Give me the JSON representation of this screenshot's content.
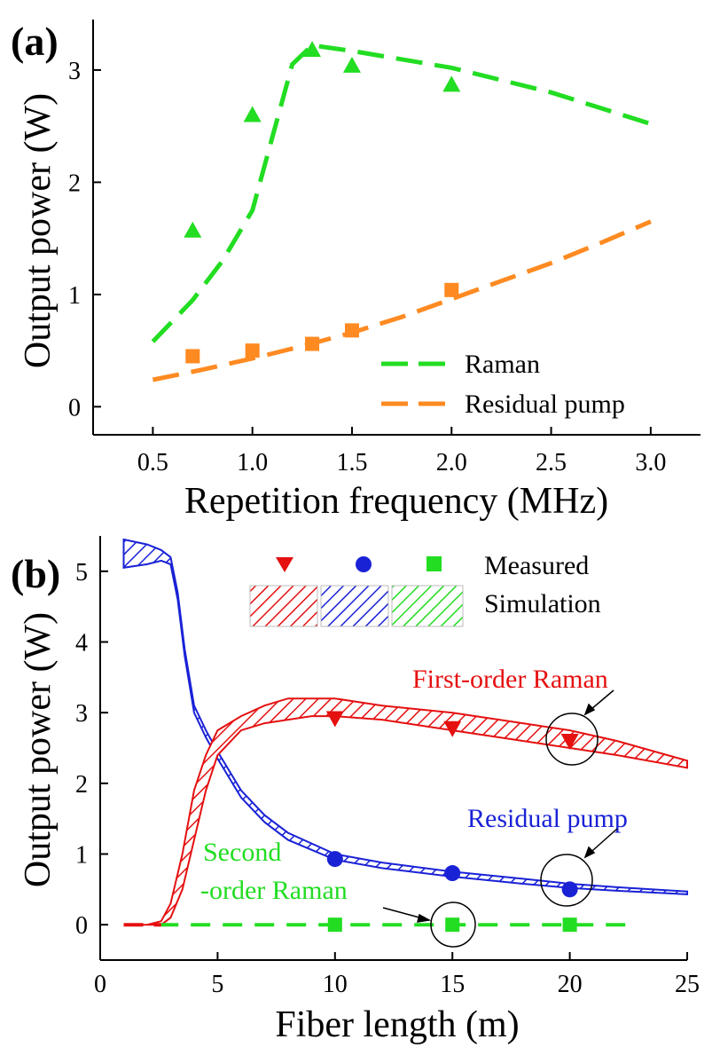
{
  "chart_data": [
    {
      "type": "line",
      "panel_label": "(a)",
      "xlabel": "Repetition frequency (MHz)",
      "ylabel": "Output power (W)",
      "xlim": [
        0.2,
        3.25
      ],
      "ylim": [
        -0.25,
        3.45
      ],
      "xticks": [
        0.5,
        1.0,
        1.5,
        2.0,
        2.5,
        3.0
      ],
      "xtick_labels": [
        "0.5",
        "1.0",
        "1.5",
        "2.0",
        "2.5",
        "3.0"
      ],
      "yticks": [
        0,
        1,
        2,
        3
      ],
      "ytick_labels": [
        "0",
        "1",
        "2",
        "3"
      ],
      "legend_position": "bottom-right",
      "series": [
        {
          "name": "Raman",
          "kind": "simulation-dashed",
          "color": "#22dd22",
          "x": [
            0.5,
            0.7,
            0.85,
            1.0,
            1.1,
            1.2,
            1.3,
            1.5,
            2.0,
            2.5,
            3.0
          ],
          "y": [
            0.58,
            0.95,
            1.3,
            1.75,
            2.4,
            3.05,
            3.22,
            3.17,
            3.02,
            2.8,
            2.52
          ]
        },
        {
          "name": "Raman measured",
          "kind": "marker-triangle-up",
          "color": "#22dd22",
          "x": [
            0.7,
            1.0,
            1.3,
            1.5,
            2.0
          ],
          "y": [
            1.57,
            2.6,
            3.18,
            3.04,
            2.87
          ]
        },
        {
          "name": "Residual pump",
          "kind": "simulation-dashed",
          "color": "#ff8a22",
          "x": [
            0.5,
            0.75,
            1.0,
            1.25,
            1.5,
            1.75,
            2.0,
            2.25,
            2.5,
            2.75,
            3.0
          ],
          "y": [
            0.24,
            0.33,
            0.43,
            0.54,
            0.66,
            0.8,
            0.96,
            1.12,
            1.28,
            1.46,
            1.65
          ]
        },
        {
          "name": "Residual pump measured",
          "kind": "marker-square",
          "color": "#ff8a22",
          "x": [
            0.7,
            1.0,
            1.3,
            1.5,
            2.0
          ],
          "y": [
            0.45,
            0.5,
            0.56,
            0.68,
            1.04
          ]
        }
      ]
    },
    {
      "type": "line",
      "panel_label": "(b)",
      "xlabel": "Fiber length (m)",
      "ylabel": "Output power (W)",
      "xlim": [
        0,
        25
      ],
      "ylim": [
        -0.5,
        5.5
      ],
      "xticks": [
        0,
        5,
        10,
        15,
        20,
        25
      ],
      "xtick_labels": [
        "0",
        "5",
        "10",
        "15",
        "20",
        "25"
      ],
      "yticks": [
        0,
        1,
        2,
        3,
        4,
        5
      ],
      "ytick_labels": [
        "0",
        "1",
        "2",
        "3",
        "4",
        "5"
      ],
      "legend": {
        "measured_label": "Measured",
        "simulation_label": "Simulation",
        "position": "top-right"
      },
      "series": [
        {
          "name": "First-order Raman (simulation)",
          "kind": "hatched-band",
          "color": "#e51010",
          "x": [
            1,
            2,
            2.6,
            3,
            3.5,
            4,
            4.5,
            5,
            6,
            7,
            8,
            9,
            10,
            12,
            15,
            18,
            20,
            22,
            25
          ],
          "y_lower": [
            0,
            0,
            0,
            0.1,
            0.5,
            1.2,
            1.9,
            2.4,
            2.75,
            2.85,
            2.9,
            2.95,
            2.95,
            2.9,
            2.75,
            2.6,
            2.5,
            2.4,
            2.22
          ],
          "y_upper": [
            0,
            0,
            0.05,
            0.3,
            1.0,
            1.9,
            2.4,
            2.75,
            2.95,
            3.1,
            3.2,
            3.2,
            3.2,
            3.1,
            3.0,
            2.85,
            2.75,
            2.6,
            2.32
          ]
        },
        {
          "name": "Residual pump (simulation)",
          "kind": "hatched-band",
          "color": "#1a22d6",
          "x": [
            1,
            2,
            2.6,
            3,
            3.3,
            3.6,
            4,
            4.5,
            5,
            6,
            7,
            8,
            10,
            12,
            15,
            18,
            20,
            22,
            25
          ],
          "y_lower": [
            5.05,
            5.1,
            5.15,
            5.1,
            4.6,
            3.8,
            3.0,
            2.65,
            2.35,
            1.8,
            1.45,
            1.2,
            0.92,
            0.8,
            0.68,
            0.58,
            0.52,
            0.48,
            0.43
          ],
          "y_upper": [
            5.45,
            5.38,
            5.3,
            5.2,
            4.7,
            3.9,
            3.1,
            2.75,
            2.45,
            1.9,
            1.55,
            1.3,
            1.0,
            0.88,
            0.75,
            0.65,
            0.58,
            0.53,
            0.47
          ]
        },
        {
          "name": "Second-order Raman (simulation)",
          "kind": "dashed-line",
          "color": "#22dd22",
          "x": [
            2.5,
            22.5
          ],
          "y": [
            0,
            0
          ]
        },
        {
          "name": "First-order Raman measured",
          "kind": "marker-triangle-down",
          "color": "#e51010",
          "x": [
            10,
            15,
            20
          ],
          "y": [
            2.92,
            2.78,
            2.6
          ]
        },
        {
          "name": "Residual pump measured",
          "kind": "marker-circle",
          "color": "#1a22d6",
          "x": [
            10,
            15,
            20
          ],
          "y": [
            0.93,
            0.73,
            0.5
          ]
        },
        {
          "name": "Second-order Raman measured",
          "kind": "marker-square",
          "color": "#22dd22",
          "x": [
            10,
            15,
            20
          ],
          "y": [
            0,
            0,
            0
          ]
        }
      ],
      "annotations": [
        {
          "text": "First-order Raman",
          "color": "#e51010",
          "target": [
            20,
            2.6
          ]
        },
        {
          "text": "Residual pump",
          "color": "#1a22d6",
          "target": [
            20,
            0.5
          ]
        },
        {
          "text_lines": [
            "Second",
            "-order Raman"
          ],
          "color": "#22dd22",
          "target": [
            15,
            0
          ]
        }
      ]
    }
  ]
}
